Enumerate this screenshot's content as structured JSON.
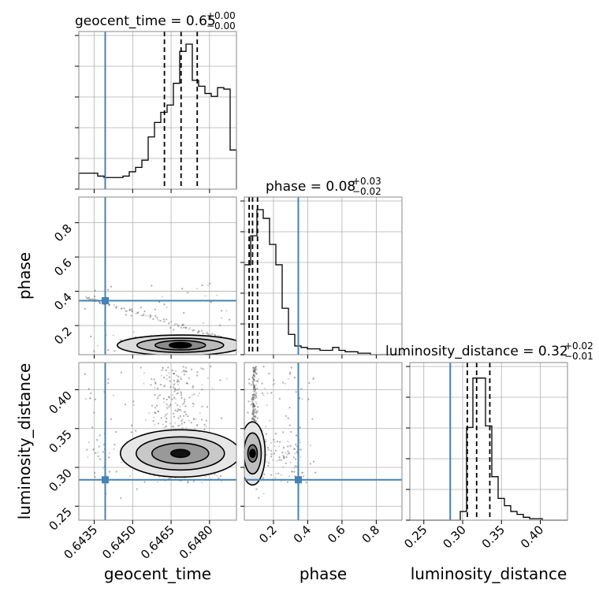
{
  "chart_data": {
    "type": "corner",
    "parameters": [
      "geocent_time",
      "phase",
      "luminosity_distance"
    ],
    "axis_labels": {
      "geocent_time": "geocent_time",
      "phase": "phase",
      "luminosity_distance": "luminosity_distance"
    },
    "titles": [
      {
        "param": "geocent_time",
        "text": "geocent_time = 0.65",
        "sup": "+0.00",
        "sub": "−0.00"
      },
      {
        "param": "phase",
        "text": "phase = 0.08",
        "sup": "+0.03",
        "sub": "−0.02"
      },
      {
        "param": "luminosity_distance",
        "text": "luminosity_distance = 0.32",
        "sup": "+0.02",
        "sub": "−0.01"
      }
    ],
    "ranges": {
      "geocent_time": [
        0.6429,
        0.64905
      ],
      "phase": [
        0.03,
        0.95
      ],
      "luminosity_distance": [
        0.232,
        0.435
      ]
    },
    "ticks": {
      "geocent_time": [
        {
          "v": 0.6435,
          "label": "0.6435"
        },
        {
          "v": 0.645,
          "label": "0.6450"
        },
        {
          "v": 0.6465,
          "label": "0.6465"
        },
        {
          "v": 0.648,
          "label": "0.6480"
        }
      ],
      "phase": [
        {
          "v": 0.2,
          "label": "0.2"
        },
        {
          "v": 0.4,
          "label": "0.4"
        },
        {
          "v": 0.6,
          "label": "0.6"
        },
        {
          "v": 0.8,
          "label": "0.8"
        }
      ],
      "luminosity_distance": [
        {
          "v": 0.25,
          "label": "0.25"
        },
        {
          "v": 0.3,
          "label": "0.30"
        },
        {
          "v": 0.35,
          "label": "0.35"
        },
        {
          "v": 0.4,
          "label": "0.40"
        }
      ]
    },
    "truths": {
      "geocent_time": 0.64393,
      "phase": 0.345,
      "luminosity_distance": 0.284
    },
    "truth_color": "#4682b4",
    "quantiles": {
      "geocent_time": [
        0.64624,
        0.64689,
        0.64752
      ],
      "phase": [
        0.058,
        0.078,
        0.107
      ],
      "luminosity_distance": [
        0.306,
        0.318,
        0.335
      ]
    },
    "histograms": {
      "geocent_time": [
        0.11,
        0.11,
        0.11,
        0.09,
        0.08,
        0.08,
        0.08,
        0.09,
        0.12,
        0.15,
        0.2,
        0.36,
        0.46,
        0.53,
        0.58,
        0.73,
        0.95,
        1.0,
        0.75,
        0.71,
        0.66,
        0.64,
        0.7,
        0.69,
        0.27
      ],
      "phase": [
        0.62,
        0.82,
        1.0,
        0.94,
        0.76,
        0.62,
        0.32,
        0.14,
        0.06,
        0.05,
        0.04,
        0.04,
        0.03,
        0.03,
        0.05,
        0.03,
        0.02,
        0.02,
        0.01,
        0.01,
        0.0,
        0.0,
        0.0,
        0.0,
        0.0
      ],
      "luminosity_distance": [
        0.0,
        0.0,
        0.0,
        0.0,
        0.0,
        0.0,
        0.0,
        0.0,
        0.06,
        0.64,
        0.98,
        0.98,
        0.65,
        0.3,
        0.15,
        0.1,
        0.06,
        0.04,
        0.02,
        0.01,
        0.01,
        0.0,
        0.0,
        0.0,
        0.0
      ]
    },
    "grid": true
  }
}
